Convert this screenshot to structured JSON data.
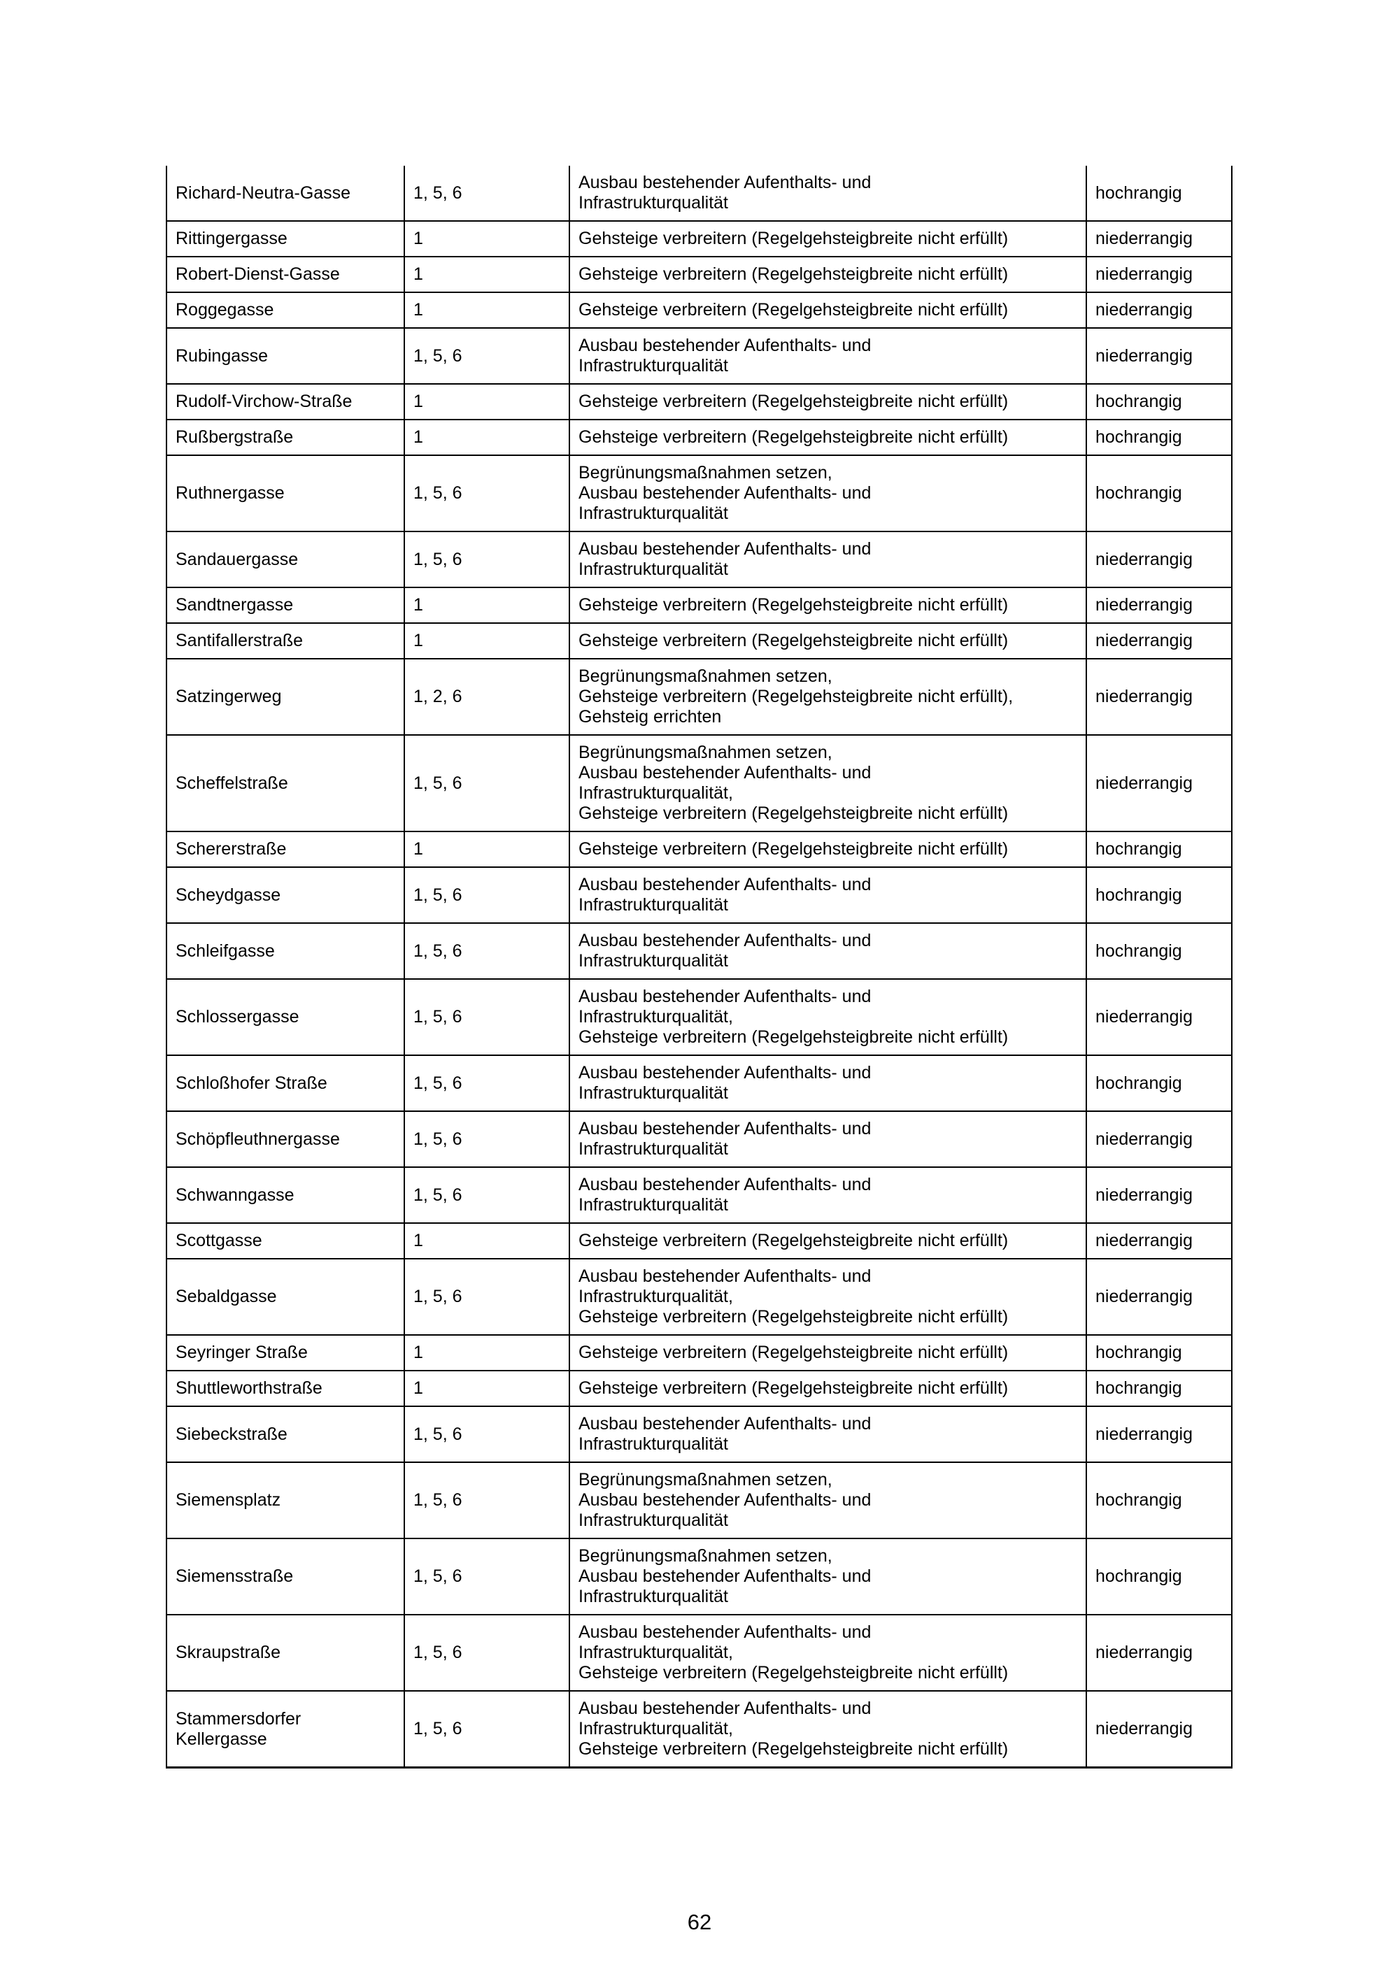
{
  "page": {
    "number": "62"
  },
  "table": {
    "rows": [
      {
        "street": "Richard-Neutra-Gasse",
        "numbers": "1, 5, 6",
        "measure_lines": [
          "Ausbau bestehender Aufenthalts- und",
          "Infrastrukturqualität"
        ],
        "priority": "hochrangig"
      },
      {
        "street": "Rittingergasse",
        "numbers": "1",
        "measure_lines": [
          "Gehsteige verbreitern (Regelgehsteigbreite nicht erfüllt)"
        ],
        "priority": "niederrangig"
      },
      {
        "street": "Robert-Dienst-Gasse",
        "numbers": "1",
        "measure_lines": [
          "Gehsteige verbreitern (Regelgehsteigbreite nicht erfüllt)"
        ],
        "priority": "niederrangig"
      },
      {
        "street": "Roggegasse",
        "numbers": "1",
        "measure_lines": [
          "Gehsteige verbreitern (Regelgehsteigbreite nicht erfüllt)"
        ],
        "priority": "niederrangig"
      },
      {
        "street": "Rubingasse",
        "numbers": "1, 5, 6",
        "measure_lines": [
          "Ausbau bestehender Aufenthalts- und",
          "Infrastrukturqualität"
        ],
        "priority": "niederrangig"
      },
      {
        "street": "Rudolf-Virchow-Straße",
        "numbers": "1",
        "measure_lines": [
          "Gehsteige verbreitern (Regelgehsteigbreite nicht erfüllt)"
        ],
        "priority": "hochrangig"
      },
      {
        "street": "Rußbergstraße",
        "numbers": "1",
        "measure_lines": [
          "Gehsteige verbreitern (Regelgehsteigbreite nicht erfüllt)"
        ],
        "priority": "hochrangig"
      },
      {
        "street": "Ruthnergasse",
        "numbers": "1, 5, 6",
        "measure_lines": [
          "Begrünungsmaßnahmen setzen,",
          "Ausbau bestehender Aufenthalts- und",
          "Infrastrukturqualität"
        ],
        "priority": "hochrangig"
      },
      {
        "street": "Sandauergasse",
        "numbers": "1, 5, 6",
        "measure_lines": [
          "Ausbau bestehender Aufenthalts- und",
          "Infrastrukturqualität"
        ],
        "priority": "niederrangig"
      },
      {
        "street": "Sandtnergasse",
        "numbers": "1",
        "measure_lines": [
          "Gehsteige verbreitern (Regelgehsteigbreite nicht erfüllt)"
        ],
        "priority": "niederrangig"
      },
      {
        "street": "Santifallerstraße",
        "numbers": "1",
        "measure_lines": [
          "Gehsteige verbreitern (Regelgehsteigbreite nicht erfüllt)"
        ],
        "priority": "niederrangig"
      },
      {
        "street": "Satzingerweg",
        "numbers": "1, 2, 6",
        "measure_lines": [
          "Begrünungsmaßnahmen setzen,",
          "Gehsteige verbreitern (Regelgehsteigbreite nicht erfüllt),",
          "Gehsteig errichten"
        ],
        "priority": "niederrangig"
      },
      {
        "street": "Scheffelstraße",
        "numbers": "1, 5, 6",
        "measure_lines": [
          "Begrünungsmaßnahmen setzen,",
          "Ausbau bestehender Aufenthalts- und",
          "Infrastrukturqualität,",
          "Gehsteige verbreitern (Regelgehsteigbreite nicht erfüllt)"
        ],
        "priority": "niederrangig"
      },
      {
        "street": "Schererstraße",
        "numbers": "1",
        "measure_lines": [
          "Gehsteige verbreitern (Regelgehsteigbreite nicht erfüllt)"
        ],
        "priority": "hochrangig"
      },
      {
        "street": "Scheydgasse",
        "numbers": "1, 5, 6",
        "measure_lines": [
          "Ausbau bestehender Aufenthalts- und",
          "Infrastrukturqualität"
        ],
        "priority": "hochrangig"
      },
      {
        "street": "Schleifgasse",
        "numbers": "1, 5, 6",
        "measure_lines": [
          "Ausbau bestehender Aufenthalts- und",
          "Infrastrukturqualität"
        ],
        "priority": "hochrangig"
      },
      {
        "street": "Schlossergasse",
        "numbers": "1, 5, 6",
        "measure_lines": [
          "Ausbau bestehender Aufenthalts- und",
          "Infrastrukturqualität,",
          "Gehsteige verbreitern (Regelgehsteigbreite nicht erfüllt)"
        ],
        "priority": "niederrangig"
      },
      {
        "street": "Schloßhofer Straße",
        "numbers": "1, 5, 6",
        "measure_lines": [
          "Ausbau bestehender Aufenthalts- und",
          "Infrastrukturqualität"
        ],
        "priority": "hochrangig"
      },
      {
        "street": "Schöpfleuthnergasse",
        "numbers": "1, 5, 6",
        "measure_lines": [
          "Ausbau bestehender Aufenthalts- und",
          "Infrastrukturqualität"
        ],
        "priority": "niederrangig"
      },
      {
        "street": "Schwanngasse",
        "numbers": "1, 5, 6",
        "measure_lines": [
          "Ausbau bestehender Aufenthalts- und",
          "Infrastrukturqualität"
        ],
        "priority": "niederrangig"
      },
      {
        "street": "Scottgasse",
        "numbers": "1",
        "measure_lines": [
          "Gehsteige verbreitern (Regelgehsteigbreite nicht erfüllt)"
        ],
        "priority": "niederrangig"
      },
      {
        "street": "Sebaldgasse",
        "numbers": "1, 5, 6",
        "measure_lines": [
          "Ausbau bestehender Aufenthalts- und",
          "Infrastrukturqualität,",
          "Gehsteige verbreitern (Regelgehsteigbreite nicht erfüllt)"
        ],
        "priority": "niederrangig"
      },
      {
        "street": "Seyringer Straße",
        "numbers": "1",
        "measure_lines": [
          "Gehsteige verbreitern (Regelgehsteigbreite nicht erfüllt)"
        ],
        "priority": "hochrangig"
      },
      {
        "street": "Shuttleworthstraße",
        "numbers": "1",
        "measure_lines": [
          "Gehsteige verbreitern (Regelgehsteigbreite nicht erfüllt)"
        ],
        "priority": "hochrangig"
      },
      {
        "street": "Siebeckstraße",
        "numbers": "1, 5, 6",
        "measure_lines": [
          "Ausbau bestehender Aufenthalts- und",
          "Infrastrukturqualität"
        ],
        "priority": "niederrangig"
      },
      {
        "street": "Siemensplatz",
        "numbers": "1, 5, 6",
        "measure_lines": [
          "Begrünungsmaßnahmen setzen,",
          "Ausbau bestehender Aufenthalts- und",
          "Infrastrukturqualität"
        ],
        "priority": "hochrangig"
      },
      {
        "street": "Siemensstraße",
        "numbers": "1, 5, 6",
        "measure_lines": [
          "Begrünungsmaßnahmen setzen,",
          "Ausbau bestehender Aufenthalts- und",
          "Infrastrukturqualität"
        ],
        "priority": "hochrangig"
      },
      {
        "street": "Skraupstraße",
        "numbers": "1, 5, 6",
        "measure_lines": [
          "Ausbau bestehender Aufenthalts- und",
          "Infrastrukturqualität,",
          "Gehsteige verbreitern (Regelgehsteigbreite nicht erfüllt)"
        ],
        "priority": "niederrangig"
      },
      {
        "street": "Stammersdorfer Kellergasse",
        "numbers": "1, 5, 6",
        "measure_lines": [
          "Ausbau bestehender Aufenthalts- und",
          "Infrastrukturqualität,",
          "Gehsteige verbreitern (Regelgehsteigbreite nicht erfüllt)"
        ],
        "priority": "niederrangig"
      }
    ]
  }
}
